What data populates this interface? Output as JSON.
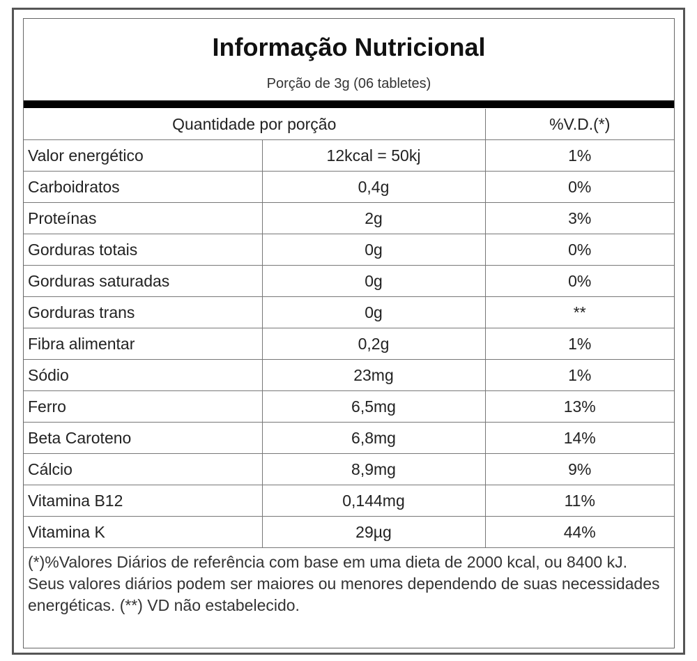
{
  "header": {
    "title": "Informação Nutricional",
    "subtitle": "Porção de 3g (06 tabletes)"
  },
  "table": {
    "columns": [
      "Quantidade por porção",
      "%V.D.(*)"
    ],
    "rows": [
      [
        "Valor energético",
        "12kcal = 50kj",
        "1%"
      ],
      [
        "Carboidratos",
        "0,4g",
        "0%"
      ],
      [
        "Proteínas",
        "2g",
        "3%"
      ],
      [
        "Gorduras totais",
        "0g",
        "0%"
      ],
      [
        "Gorduras saturadas",
        "0g",
        "0%"
      ],
      [
        "Gorduras trans",
        "0g",
        "**"
      ],
      [
        "Fibra alimentar",
        "0,2g",
        "1%"
      ],
      [
        "Sódio",
        "23mg",
        "1%"
      ],
      [
        "Ferro",
        "6,5mg",
        "13%"
      ],
      [
        "Beta Caroteno",
        "6,8mg",
        "14%"
      ],
      [
        "Cálcio",
        "8,9mg",
        "9%"
      ],
      [
        "Vitamina B12",
        "0,144mg",
        "11%"
      ],
      [
        "Vitamina K",
        "29µg",
        "44%"
      ]
    ]
  },
  "footnote": "(*)%Valores Diários de referência com base em uma dieta de 2000 kcal, ou 8400 kJ. Seus valores diários podem ser maiores ou menores dependendo de suas necessidades energéticas. (**) VD não estabelecido."
}
